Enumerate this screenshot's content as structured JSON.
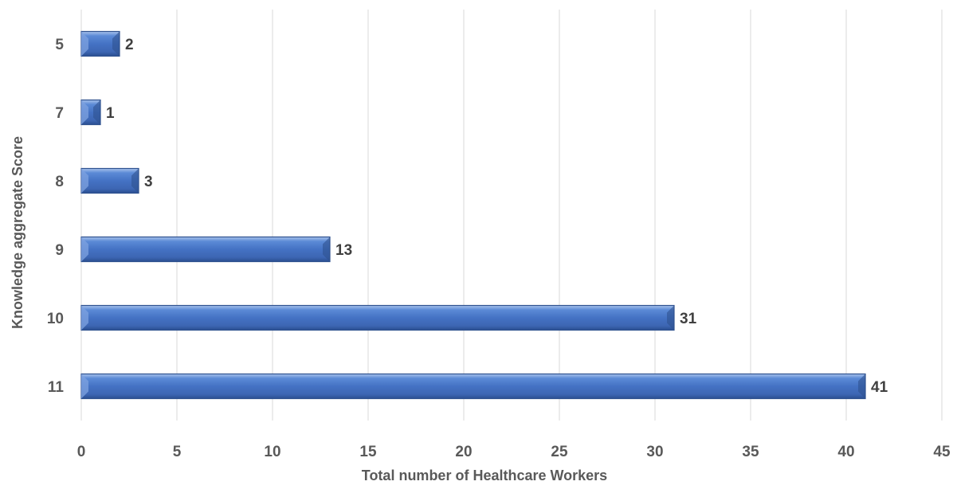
{
  "chart_data": {
    "type": "bar",
    "orientation": "horizontal",
    "title": "",
    "xlabel": "Total number of Healthcare Workers",
    "ylabel": "Knowledge aggregate Score",
    "categories": [
      "5",
      "7",
      "8",
      "9",
      "10",
      "11"
    ],
    "values": [
      2,
      1,
      3,
      13,
      31,
      41
    ],
    "xlim": [
      0,
      45
    ],
    "x_ticks": [
      "0",
      "5",
      "10",
      "15",
      "20",
      "25",
      "30",
      "35",
      "40",
      "45"
    ],
    "grid": "vertical",
    "legend": "none",
    "colors": {
      "bar": "#4472c4",
      "bar_light": "#8faadc",
      "bar_dark": "#2f528f"
    }
  }
}
